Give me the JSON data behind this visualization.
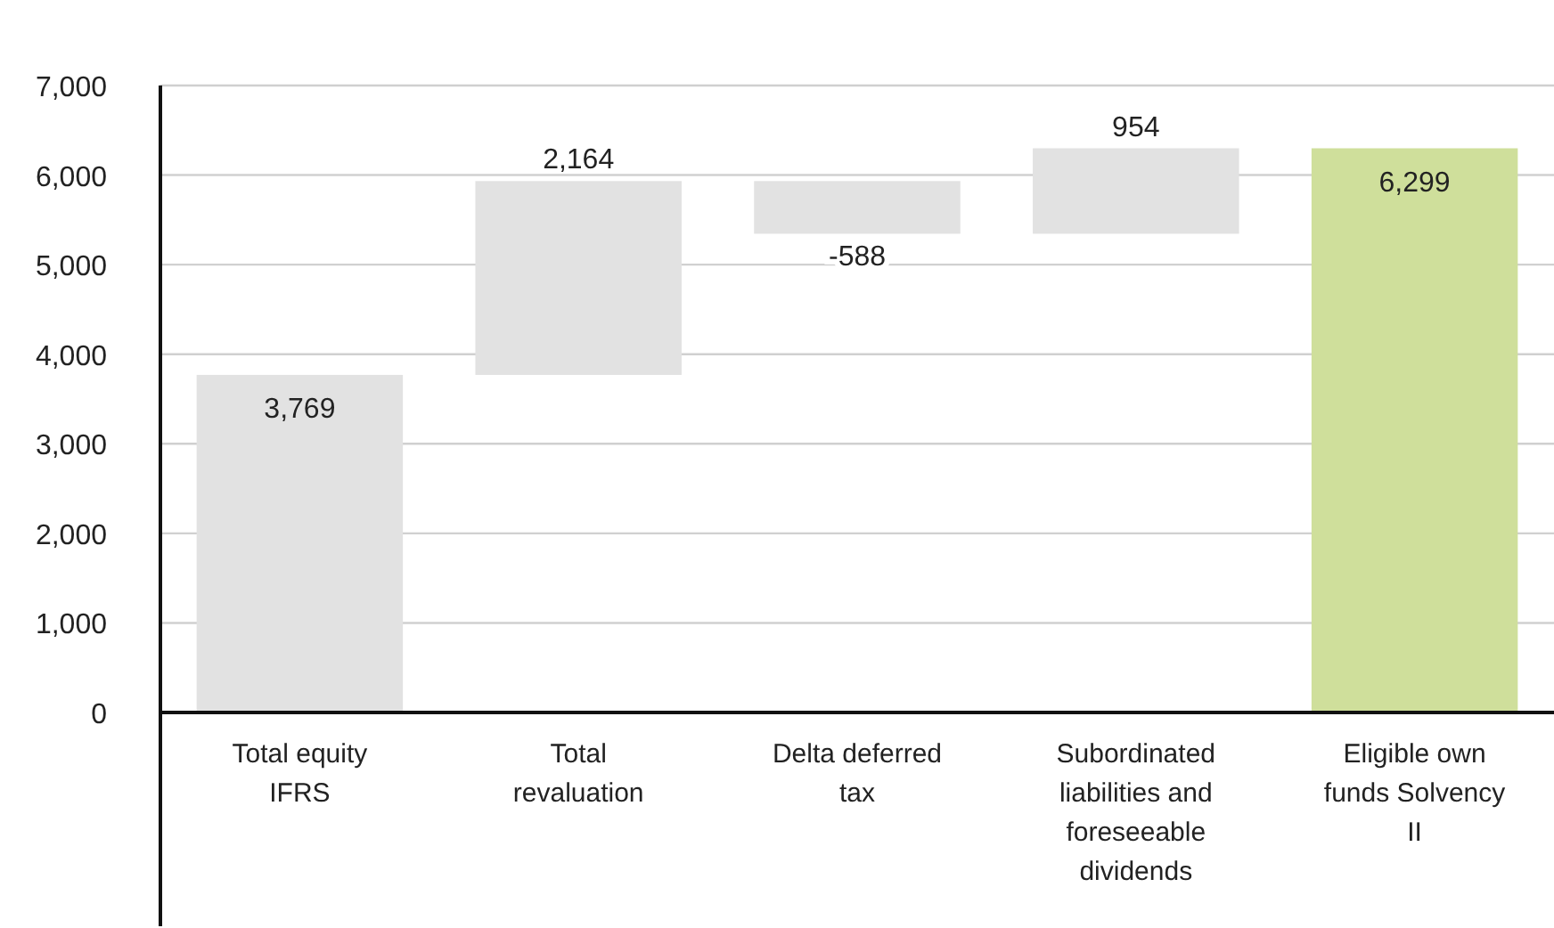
{
  "chart_data": {
    "type": "bar",
    "categories": [
      "Total equity IFRS",
      "Total revaluation",
      "Delta deferred tax",
      "Subordinated liabilities and foreseeable dividends",
      "Eligible own funds Solvency II"
    ],
    "values": [
      3769,
      2164,
      -588,
      954,
      6299
    ],
    "base": [
      0,
      3769,
      5933,
      5345,
      0
    ],
    "colors": [
      "#e2e2e2",
      "#e2e2e2",
      "#e2e2e2",
      "#e2e2e2",
      "#cfdf9b"
    ],
    "value_labels": [
      "3,769",
      "2,164",
      "-588",
      "954",
      "6,299"
    ],
    "ylim": [
      0,
      7000
    ],
    "yticks": [
      {
        "value": 0,
        "label": "0"
      },
      {
        "value": 1000,
        "label": "1,000"
      },
      {
        "value": 2000,
        "label": "2,000"
      },
      {
        "value": 3000,
        "label": "3,000"
      },
      {
        "value": 4000,
        "label": "4,000"
      },
      {
        "value": 5000,
        "label": "5,000"
      },
      {
        "value": 6000,
        "label": "6,000"
      },
      {
        "value": 7000,
        "label": "7,000"
      }
    ],
    "grid": "y"
  }
}
